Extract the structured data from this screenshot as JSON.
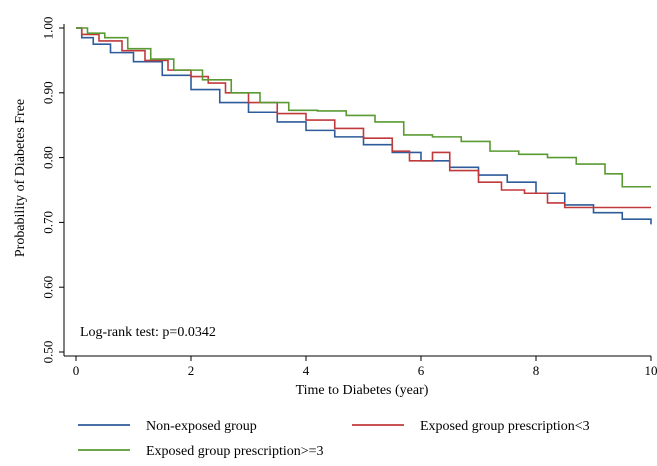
{
  "chart_data": {
    "type": "line",
    "step": true,
    "xlabel": "Time to Diabetes (year)",
    "ylabel": "Probability of Diabetes Free",
    "xlim": [
      0,
      10
    ],
    "ylim": [
      0.5,
      1.0
    ],
    "xticks": [
      0,
      2,
      4,
      6,
      8,
      10
    ],
    "xtick_labels": [
      "0",
      "2",
      "4",
      "6",
      "8",
      "10"
    ],
    "yticks": [
      0.5,
      0.6,
      0.7,
      0.8,
      0.9,
      1.0
    ],
    "ytick_labels": [
      "0.50",
      "0.60",
      "0.70",
      "0.80",
      "0.90",
      "1.00"
    ],
    "grid": false,
    "legend_position": "bottom",
    "annotation": "Log-rank test: p=0.0342",
    "series": [
      {
        "name": "Non-exposed group",
        "color": "#2e5b9a",
        "x": [
          0,
          0.1,
          0.3,
          0.6,
          1.0,
          1.5,
          2.0,
          2.5,
          3.0,
          3.5,
          4.0,
          4.5,
          5.0,
          5.5,
          6.0,
          6.5,
          7.0,
          7.5,
          8.0,
          8.5,
          9.0,
          9.5,
          10.0
        ],
        "values": [
          1.0,
          0.985,
          0.975,
          0.962,
          0.948,
          0.927,
          0.905,
          0.885,
          0.87,
          0.855,
          0.842,
          0.832,
          0.82,
          0.808,
          0.795,
          0.785,
          0.773,
          0.762,
          0.745,
          0.727,
          0.715,
          0.705,
          0.697
        ]
      },
      {
        "name": "Exposed group prescription<3",
        "color": "#c0393b",
        "x": [
          0,
          0.1,
          0.4,
          0.8,
          1.2,
          1.6,
          2.0,
          2.3,
          2.6,
          3.0,
          3.5,
          4.0,
          4.5,
          5.0,
          5.5,
          5.8,
          6.2,
          6.5,
          7.0,
          7.4,
          7.8,
          8.2,
          8.5,
          9.0,
          10.0
        ],
        "values": [
          1.0,
          0.99,
          0.98,
          0.965,
          0.95,
          0.935,
          0.925,
          0.915,
          0.9,
          0.885,
          0.868,
          0.858,
          0.845,
          0.83,
          0.81,
          0.795,
          0.808,
          0.78,
          0.762,
          0.75,
          0.745,
          0.73,
          0.723,
          0.723,
          0.723
        ]
      },
      {
        "name": "Exposed group prescription>=3",
        "color": "#5a9a32",
        "x": [
          0,
          0.2,
          0.5,
          0.9,
          1.3,
          1.7,
          2.2,
          2.7,
          3.2,
          3.7,
          4.2,
          4.7,
          5.2,
          5.7,
          6.2,
          6.7,
          7.2,
          7.7,
          8.2,
          8.7,
          9.2,
          9.5,
          10.0
        ],
        "values": [
          1.0,
          0.992,
          0.985,
          0.968,
          0.952,
          0.935,
          0.92,
          0.9,
          0.885,
          0.873,
          0.872,
          0.865,
          0.855,
          0.835,
          0.832,
          0.825,
          0.81,
          0.805,
          0.8,
          0.79,
          0.775,
          0.755,
          0.755
        ]
      }
    ]
  }
}
